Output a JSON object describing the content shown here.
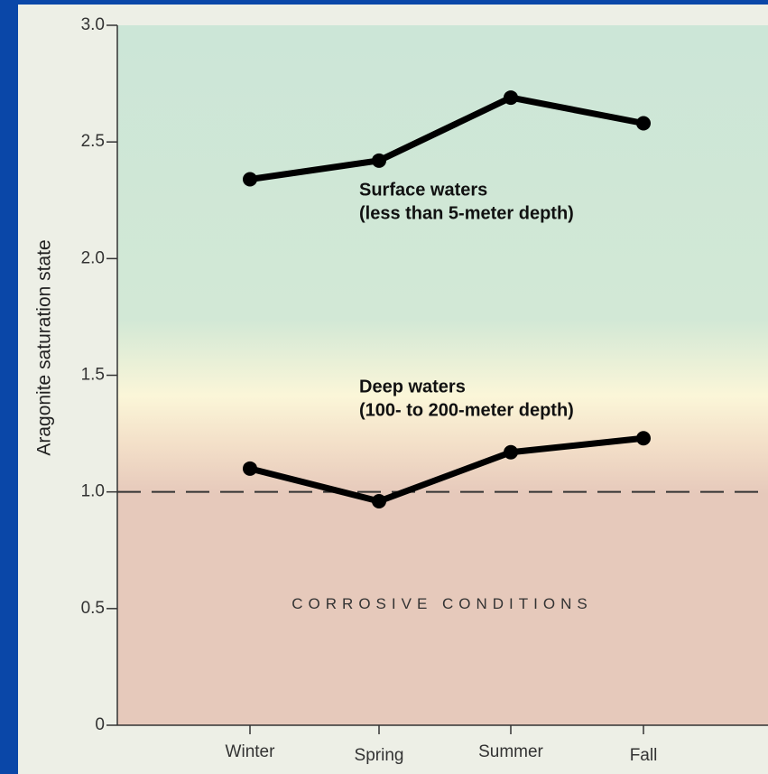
{
  "chart_data": {
    "type": "line",
    "y_label": "Aragonite saturation state",
    "categories": [
      "Winter",
      "Spring",
      "Summer",
      "Fall"
    ],
    "series": [
      {
        "name": "Surface waters",
        "description": "(less than 5-meter depth)",
        "color": "#000000",
        "values": [
          2.34,
          2.42,
          2.69,
          2.58
        ]
      },
      {
        "name": "Deep waters",
        "description": "(100- to 200-meter depth)",
        "color": "#000000",
        "values": [
          1.1,
          0.96,
          1.17,
          1.23
        ]
      }
    ],
    "threshold": 1,
    "threshold_label": "CORROSIVE CONDITIONS",
    "ylim": [
      0,
      3
    ],
    "yticks": [
      0,
      0.5,
      {
        "value": 1,
        "label": "1.0"
      },
      1.5,
      {
        "value": 2,
        "label": "2.0"
      },
      2.5,
      {
        "value": 3,
        "label": "3.0"
      }
    ]
  }
}
